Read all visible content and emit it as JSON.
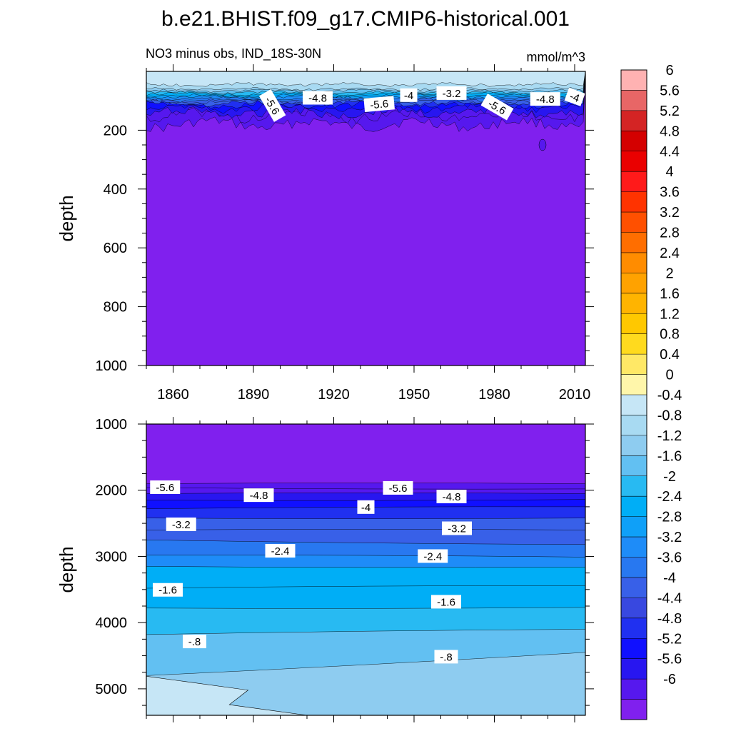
{
  "title": "b.e21.BHIST.f09_g17.CMIP6-historical.001",
  "chart_data": {
    "type": "contour",
    "title": "b.e21.BHIST.f09_g17.CMIP6-historical.001",
    "subtitle": "NO3 minus obs, IND_18S-30N",
    "units": "mmol/m^3",
    "ylabel": "depth",
    "x_range": [
      1850,
      2014
    ],
    "x_ticks": [
      "1860",
      "1890",
      "1920",
      "1950",
      "1980",
      "2010"
    ],
    "upper_panel": {
      "ylim": [
        0,
        1000
      ],
      "y_ticks": [
        "200",
        "400",
        "600",
        "800",
        "1000"
      ],
      "contour_labels": [
        "-5.6",
        "-4.8",
        "-5.6",
        "-4",
        "-3.2",
        "-5.6",
        "-4.8",
        "-4"
      ],
      "description": "near-surface values near 0 to -4, below ~180 m uniformly below -6"
    },
    "lower_panel": {
      "ylim": [
        1000,
        5400
      ],
      "y_ticks": [
        "1000",
        "2000",
        "3000",
        "4000",
        "5000"
      ],
      "contour_labels": [
        "-5.6",
        "-4.8",
        "-4",
        "-3.2",
        "-2.4",
        "-1.6",
        "-.8",
        "-5.6",
        "-4.8",
        "-3.2",
        "-2.4",
        "-1.6",
        "-.8"
      ],
      "description": "values below -6 above ~1900 m, increasing toward -0.4 at ~5300 m"
    },
    "colorbar": {
      "levels": [
        "6",
        "5.6",
        "5.2",
        "4.8",
        "4.4",
        "4",
        "3.6",
        "3.2",
        "2.8",
        "2.4",
        "2",
        "1.6",
        "1.2",
        "0.8",
        "0.4",
        "0",
        "-0.4",
        "-0.8",
        "-1.2",
        "-1.6",
        "-2",
        "-2.4",
        "-2.8",
        "-3.2",
        "-3.6",
        "-4",
        "-4.4",
        "-4.8",
        "-5.2",
        "-5.6",
        "-6"
      ],
      "colors": [
        "#FFB2B2",
        "#E86666",
        "#D42424",
        "#D40000",
        "#EA0000",
        "#FF1A1A",
        "#FF3300",
        "#FF5000",
        "#FF6E00",
        "#FF8C00",
        "#FFA200",
        "#FFB400",
        "#FFC800",
        "#FFDA1E",
        "#FFE866",
        "#FFF6AA",
        "#C6E6F6",
        "#A8DAF2",
        "#8ECCF0",
        "#62C0F2",
        "#28BAF2",
        "#00AEF6",
        "#0FA0F8",
        "#1E8CF8",
        "#2878F0",
        "#3860E8",
        "#3848E0",
        "#2030F0",
        "#1010FF",
        "#2816F0",
        "#5618EE",
        "#8020EE"
      ]
    }
  }
}
